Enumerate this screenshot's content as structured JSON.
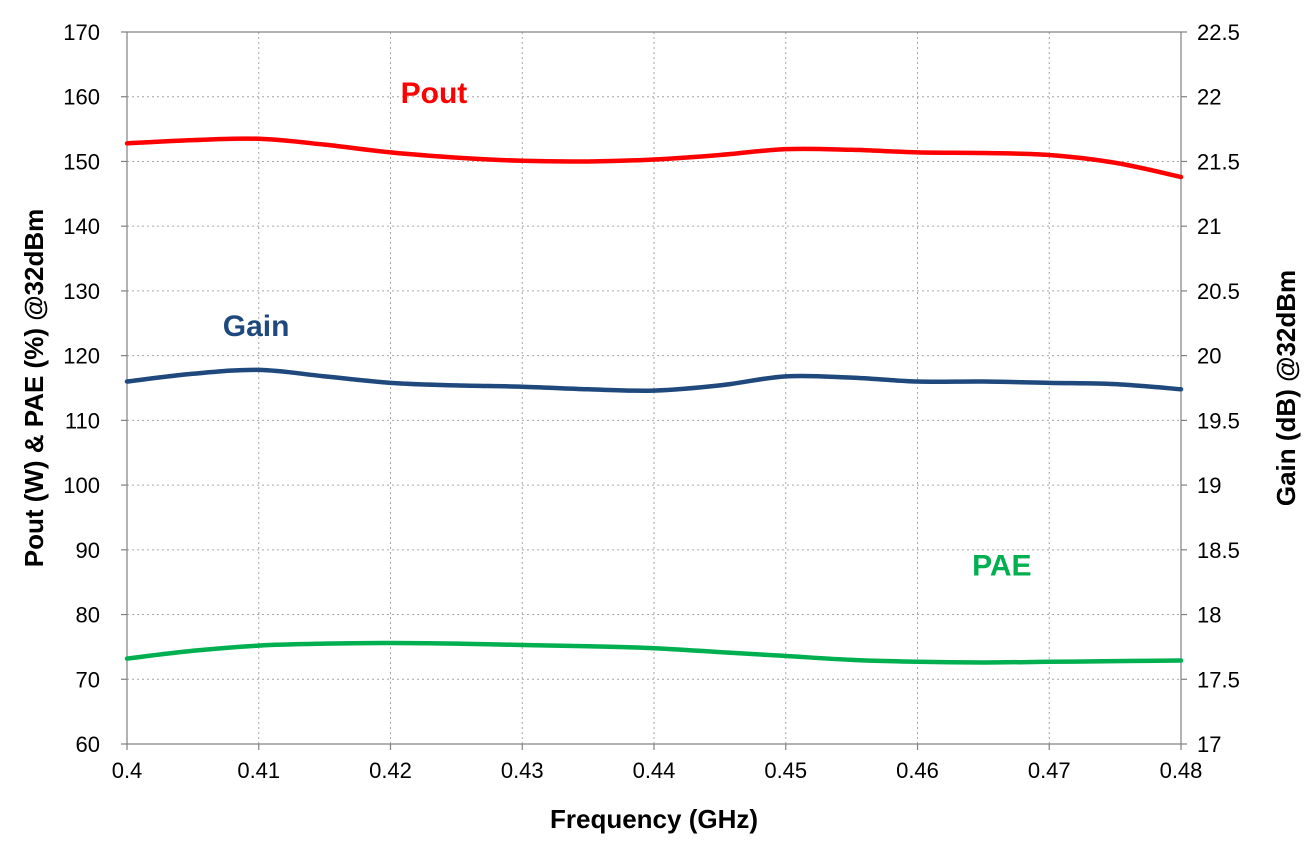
{
  "chart_data": {
    "type": "line",
    "xlabel": "Frequency (GHz)",
    "ylabel": "Pout (W) & PAE (%)  @32dBm",
    "y2label": "Gain (dB) @32dBm",
    "xlim": [
      0.4,
      0.48
    ],
    "ylim": [
      60,
      170
    ],
    "y2lim": [
      17,
      22.5
    ],
    "x_ticks": [
      "0.4",
      "0.41",
      "0.42",
      "0.43",
      "0.44",
      "0.45",
      "0.46",
      "0.47",
      "0.48"
    ],
    "y_ticks": [
      "60",
      "70",
      "80",
      "90",
      "100",
      "110",
      "120",
      "130",
      "140",
      "150",
      "160",
      "170"
    ],
    "y2_ticks": [
      "17",
      "17.5",
      "18",
      "18.5",
      "19",
      "19.5",
      "20",
      "20.5",
      "21",
      "21.5",
      "22",
      "22.5"
    ],
    "grid": true,
    "x": [
      0.4,
      0.405,
      0.41,
      0.415,
      0.42,
      0.425,
      0.43,
      0.435,
      0.44,
      0.445,
      0.45,
      0.455,
      0.46,
      0.465,
      0.47,
      0.475,
      0.48
    ],
    "series": [
      {
        "name": "Pout",
        "axis": "left",
        "color": "#ff0000",
        "values": [
          152.8,
          153.3,
          153.5,
          152.6,
          151.4,
          150.6,
          150.1,
          150.0,
          150.3,
          151.0,
          151.9,
          151.8,
          151.4,
          151.3,
          151.0,
          149.8,
          147.6
        ]
      },
      {
        "name": "Gain",
        "axis": "right",
        "color": "#1f497d",
        "values": [
          19.8,
          19.86,
          19.89,
          19.84,
          19.79,
          19.77,
          19.76,
          19.74,
          19.73,
          19.77,
          19.84,
          19.83,
          19.8,
          19.8,
          19.79,
          19.78,
          19.74
        ]
      },
      {
        "name": "PAE",
        "axis": "left",
        "color": "#00b050",
        "values": [
          73.2,
          74.4,
          75.2,
          75.5,
          75.6,
          75.5,
          75.3,
          75.1,
          74.8,
          74.2,
          73.6,
          73.0,
          72.7,
          72.6,
          72.7,
          72.8,
          72.9
        ]
      }
    ],
    "labels": [
      {
        "text": "Pout",
        "color": "#ff0000",
        "x": 0.4233,
        "y": 159
      },
      {
        "text": "Gain",
        "color": "#1f497d",
        "x": 0.4098,
        "y": 123
      },
      {
        "text": "PAE",
        "color": "#00b050",
        "x": 0.4664,
        "y": 86
      }
    ]
  }
}
